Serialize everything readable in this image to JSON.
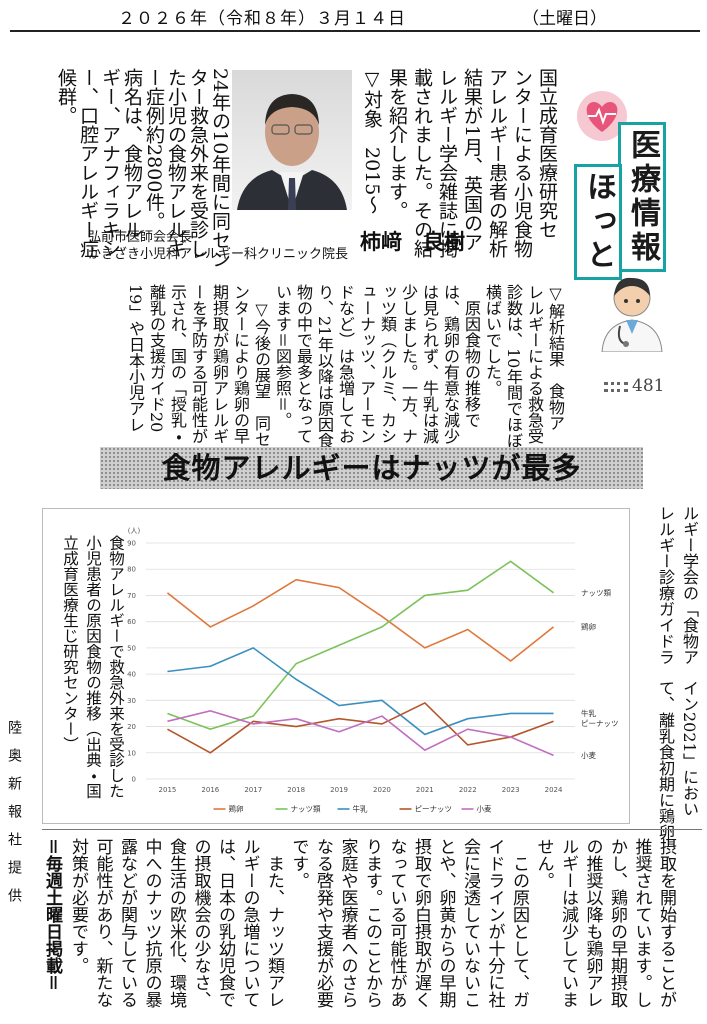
{
  "header": {
    "date": "２０２６年（令和８年）３月１４日",
    "weekday": "（土曜日）"
  },
  "column_logo": {
    "title_line1": "医療情報",
    "title_line2": "ほっと",
    "number": "481"
  },
  "article": {
    "lead_lines_right": [
      "国立成育医療研究セ",
      "ンターによる小児食物",
      "アレルギー患者の解析",
      "結果が1月、英国のア",
      "レルギー学会雑誌に掲",
      "載されました。その結",
      "果を紹介します。",
      "▽対象　2015～"
    ],
    "lead_lines_left": [
      "24年の10年間に同セン",
      "ター救急外来を受診し",
      "た小児の食物アレルギ",
      "ー症例約2800件。",
      "病名は、食物アレル",
      "ギー、アナフィラキシ",
      "ー、口腔アレルギー症",
      "候群。"
    ],
    "author": {
      "affiliation_1": "弘前市医師会会長",
      "affiliation_2": "かきざき小児科アレルギー科クリニック院長",
      "name": "柿﨑　良樹"
    },
    "middle_lines": [
      "▽解析結果　食物ア",
      "レルギーによる救急受",
      "診数は、10年間でほぼ",
      "横ばいでした。",
      "　原因食物の推移で",
      "は、鶏卵の有意な減少",
      "は見られず、牛乳は減",
      "少しました。一方、ナ",
      "ッツ類（クルミ、カシ",
      "ューナッツ、アーモン",
      "ドなど）は急増してお",
      "り、21年以降は原因食",
      "物の中で最多となって",
      "います＝図参照＝。",
      "　▽今後の展望　同セ",
      "ンターにより鶏卵の早",
      "期摂取が鶏卵アレルギ",
      "ーを予防する可能性が",
      "示され、国の「授乳・",
      "離乳の支援ガイド20",
      "19」や日本小児アレ"
    ],
    "headline": "食物アレルギーはナッツが最多",
    "side_lines_upper": [
      "ルギー学会の「食物ア",
      "レルギー診療ガイドラ"
    ],
    "side_lines_lower": [
      "イン2021」におい",
      "て、離乳食初期に鶏卵"
    ],
    "bottom_lines": [
      "摂取を開始することが",
      "推奨されています。し",
      "かし、鶏卵の早期摂取",
      "の推奨以降も鶏卵アレ",
      "ルギーは減少していま",
      "せん。",
      "　この原因として、ガ",
      "イドラインが十分に社",
      "会に浸透していないこ",
      "とや、卵黄からの早期",
      "摂取で卵白摂取が遅く",
      "なっている可能性があ",
      "ります。このことから",
      "家庭や医療者へのさら",
      "なる啓発や支援が必要",
      "です。",
      "　また、ナッツ類アレ",
      "ルギーの急増について",
      "は、日本の乳幼児食で",
      "の摂取機会の少なさ、",
      "食生活の欧米化、環境",
      "中へのナッツ抗原の暴",
      "露などが関与している",
      "可能性があり、新たな",
      "対策が必要です。"
    ],
    "footer": "＝毎週土曜日掲載＝"
  },
  "credit": "陸奥新報社提供",
  "chart_data": {
    "type": "line",
    "caption": "食物アレルギーで救急外来を受診した小児患者の原因食物の推移（出典・国立成育医療生じ研究センター）",
    "y_label": "(人)",
    "categories": [
      "2015",
      "2016",
      "2017",
      "2018",
      "2019",
      "2020",
      "2021",
      "2022",
      "2023",
      "2024"
    ],
    "series": [
      {
        "name": "鶏卵",
        "color": "#e0783c",
        "values": [
          71,
          58,
          66,
          76,
          73,
          62,
          50,
          57,
          45,
          58
        ]
      },
      {
        "name": "ナッツ類",
        "color": "#7dc25c",
        "values": [
          25,
          19,
          24,
          44,
          51,
          58,
          70,
          72,
          83,
          71
        ]
      },
      {
        "name": "牛乳",
        "color": "#3a8fc0",
        "values": [
          41,
          43,
          50,
          38,
          28,
          30,
          17,
          23,
          25,
          25
        ]
      },
      {
        "name": "ピーナッツ",
        "color": "#b5552a",
        "values": [
          19,
          10,
          22,
          20,
          23,
          21,
          29,
          13,
          16,
          22
        ]
      },
      {
        "name": "小麦",
        "color": "#c070c0",
        "values": [
          22,
          26,
          21,
          23,
          18,
          24,
          11,
          19,
          16,
          9
        ]
      }
    ],
    "ylim": [
      0,
      90
    ],
    "yticks": [
      0,
      10,
      20,
      30,
      40,
      50,
      60,
      70,
      80,
      90
    ],
    "grid": true,
    "legend": "bottom"
  }
}
